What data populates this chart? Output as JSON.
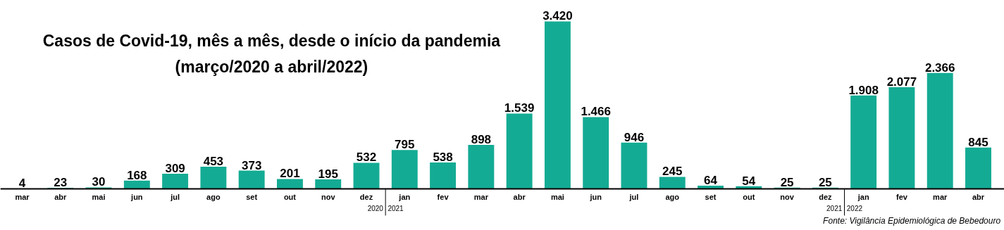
{
  "chart_data": {
    "type": "bar",
    "title": "Casos de Covid-19, mês a mês, desde o início da pandemia",
    "subtitle": "(março/2020 a abril/2022)",
    "categories": [
      "mar",
      "abr",
      "mai",
      "jun",
      "jul",
      "ago",
      "set",
      "out",
      "nov",
      "dez",
      "jan",
      "fev",
      "mar",
      "abr",
      "mai",
      "jun",
      "jul",
      "ago",
      "set",
      "out",
      "nov",
      "dez",
      "jan",
      "fev",
      "mar",
      "abr"
    ],
    "values": [
      4,
      23,
      30,
      168,
      309,
      453,
      373,
      201,
      195,
      532,
      795,
      538,
      898,
      1539,
      3420,
      1466,
      946,
      245,
      64,
      54,
      25,
      25,
      1908,
      2077,
      2366,
      845
    ],
    "value_labels": [
      "4",
      "23",
      "30",
      "168",
      "309",
      "453",
      "373",
      "201",
      "195",
      "532",
      "795",
      "538",
      "898",
      "1.539",
      "3.420",
      "1.466",
      "946",
      "245",
      "64",
      "54",
      "25",
      "25",
      "1.908",
      "2.077",
      "2.366",
      "845"
    ],
    "color": "#14ab94",
    "tick_labels": "x",
    "grid": false,
    "annotations": [
      "2020",
      "2021",
      "2021",
      "2022",
      "Fonte: Vigilância Epidemiológica de Bebedouro"
    ]
  }
}
